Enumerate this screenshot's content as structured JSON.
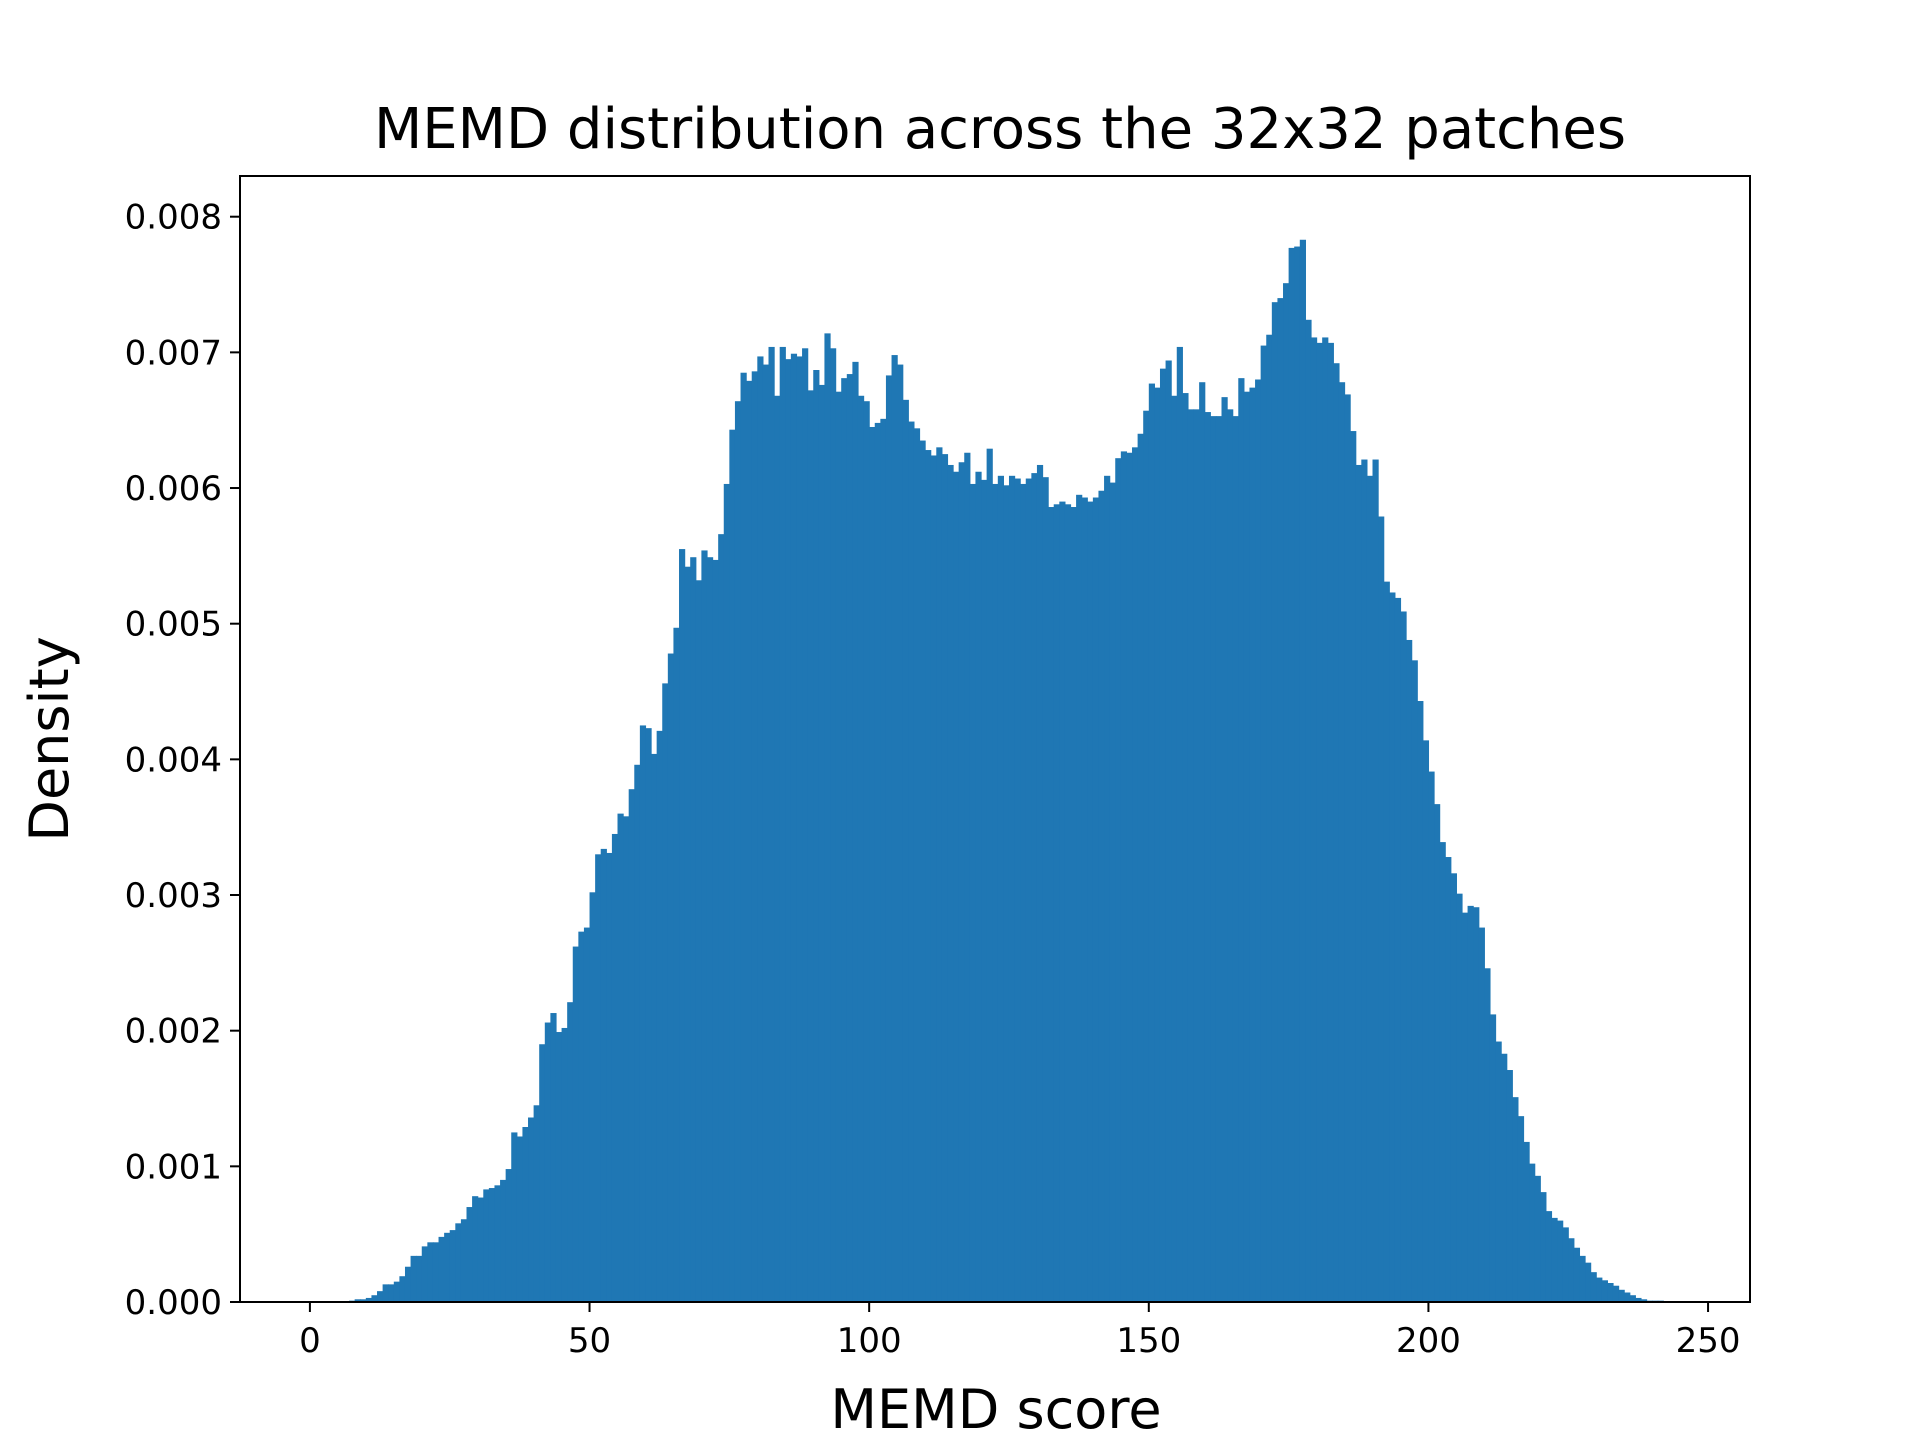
{
  "chart_data": {
    "type": "bar",
    "subtype": "histogram",
    "title": "MEMD distribution across the 32x32 patches",
    "xlabel": "MEMD score",
    "ylabel": "Density",
    "xlim": [
      -12.5,
      257.5
    ],
    "ylim": [
      0,
      0.0083
    ],
    "xticks": [
      0,
      50,
      100,
      150,
      200,
      250
    ],
    "yticks": [
      0.0,
      0.001,
      0.002,
      0.003,
      0.004,
      0.005,
      0.006,
      0.007,
      0.008
    ],
    "xtick_labels": [
      "0",
      "50",
      "100",
      "150",
      "200",
      "250"
    ],
    "ytick_labels": [
      "0.000",
      "0.001",
      "0.002",
      "0.003",
      "0.004",
      "0.005",
      "0.006",
      "0.007",
      "0.008"
    ],
    "grid": false,
    "legend": "none",
    "bar_color": "#1f77b4",
    "bin_start": 0,
    "bin_width": 1,
    "values": [
      0,
      0,
      0,
      0,
      0,
      0,
      0,
      1e-05,
      2e-05,
      2e-05,
      3e-05,
      5e-05,
      8e-05,
      0.00013,
      0.00013,
      0.00015,
      0.00019,
      0.00026,
      0.00034,
      0.00034,
      0.00041,
      0.00044,
      0.00044,
      0.00048,
      0.00051,
      0.00053,
      0.00058,
      0.00061,
      0.0007,
      0.00078,
      0.00077,
      0.00083,
      0.00084,
      0.00086,
      0.0009,
      0.00098,
      0.00125,
      0.00122,
      0.00129,
      0.00136,
      0.00145,
      0.0019,
      0.00206,
      0.00213,
      0.00199,
      0.00202,
      0.00221,
      0.00262,
      0.00273,
      0.00276,
      0.00302,
      0.0033,
      0.00334,
      0.00331,
      0.00345,
      0.0036,
      0.00358,
      0.00378,
      0.00396,
      0.00425,
      0.00423,
      0.00404,
      0.00421,
      0.00456,
      0.00478,
      0.00497,
      0.00555,
      0.00542,
      0.00549,
      0.00532,
      0.00554,
      0.00549,
      0.00547,
      0.00566,
      0.00603,
      0.00643,
      0.00664,
      0.00685,
      0.00679,
      0.00686,
      0.00697,
      0.00691,
      0.00704,
      0.00668,
      0.00704,
      0.00695,
      0.00699,
      0.00697,
      0.00703,
      0.00672,
      0.00687,
      0.00676,
      0.00714,
      0.00703,
      0.00671,
      0.00681,
      0.00684,
      0.00693,
      0.00668,
      0.00664,
      0.00645,
      0.00648,
      0.00651,
      0.00683,
      0.00698,
      0.00691,
      0.00665,
      0.00649,
      0.00644,
      0.00635,
      0.00628,
      0.00624,
      0.0063,
      0.00625,
      0.00617,
      0.00612,
      0.00619,
      0.00626,
      0.00603,
      0.00612,
      0.00606,
      0.00629,
      0.00603,
      0.00609,
      0.00602,
      0.00609,
      0.00607,
      0.00603,
      0.00607,
      0.00611,
      0.00617,
      0.00608,
      0.00586,
      0.00588,
      0.0059,
      0.00588,
      0.00586,
      0.00595,
      0.00593,
      0.0059,
      0.00593,
      0.00598,
      0.00609,
      0.00604,
      0.00622,
      0.00627,
      0.00626,
      0.0063,
      0.0064,
      0.00657,
      0.00677,
      0.00674,
      0.00688,
      0.00694,
      0.00668,
      0.00704,
      0.0067,
      0.00658,
      0.00658,
      0.00678,
      0.00656,
      0.00653,
      0.00653,
      0.00667,
      0.00658,
      0.00653,
      0.00681,
      0.00671,
      0.00674,
      0.0068,
      0.00705,
      0.00713,
      0.00737,
      0.0074,
      0.00751,
      0.00777,
      0.00778,
      0.00783,
      0.00724,
      0.00711,
      0.00707,
      0.00711,
      0.00707,
      0.00692,
      0.00678,
      0.00669,
      0.00642,
      0.00617,
      0.00621,
      0.00609,
      0.00621,
      0.00579,
      0.00531,
      0.00523,
      0.00519,
      0.00509,
      0.00488,
      0.00473,
      0.00443,
      0.00414,
      0.00391,
      0.00367,
      0.00339,
      0.00328,
      0.00316,
      0.00301,
      0.00287,
      0.00292,
      0.00291,
      0.00276,
      0.00246,
      0.00212,
      0.00192,
      0.00183,
      0.00171,
      0.00151,
      0.00137,
      0.00118,
      0.00102,
      0.00093,
      0.00081,
      0.00067,
      0.00062,
      0.0006,
      0.00055,
      0.00047,
      0.0004,
      0.00034,
      0.00029,
      0.00022,
      0.00018,
      0.00016,
      0.00014,
      0.00012,
      9e-05,
      7e-05,
      5e-05,
      3e-05,
      2e-05,
      1e-05,
      1e-05,
      1e-05,
      0,
      0,
      0,
      0,
      0,
      0,
      0,
      0
    ]
  }
}
